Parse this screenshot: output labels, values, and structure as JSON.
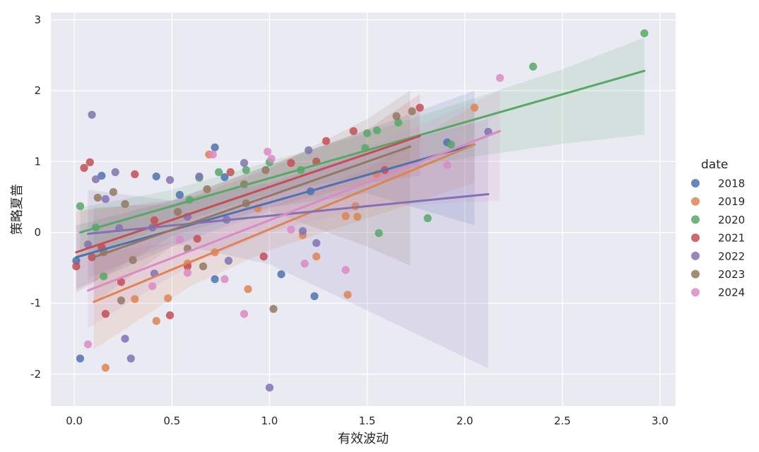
{
  "chart_data": {
    "type": "scatter",
    "subtype": "regression-with-confidence-bands",
    "xlabel": "有效波动",
    "ylabel": "策略夏普",
    "xlim": [
      -0.12,
      3.08
    ],
    "ylim": [
      -2.45,
      3.1
    ],
    "xticks": [
      0.0,
      0.5,
      1.0,
      1.5,
      2.0,
      2.5,
      3.0
    ],
    "xtick_labels": [
      "0.0",
      "0.5",
      "1.0",
      "1.5",
      "2.0",
      "2.5",
      "3.0"
    ],
    "yticks": [
      -2,
      -1,
      0,
      1,
      2,
      3
    ],
    "ytick_labels": [
      "-2",
      "-1",
      "0",
      "1",
      "2",
      "3"
    ],
    "grid": true,
    "background": "#eaeaf2",
    "legend": {
      "title": "date",
      "position": "right"
    },
    "series": [
      {
        "name": "2018",
        "color": "#4c72b0",
        "points": [
          [
            0.01,
            -0.4
          ],
          [
            0.03,
            -1.78
          ],
          [
            0.14,
            0.8
          ],
          [
            0.42,
            0.79
          ],
          [
            0.54,
            0.53
          ],
          [
            0.72,
            1.2
          ],
          [
            0.77,
            0.78
          ],
          [
            1.06,
            -0.59
          ],
          [
            1.21,
            0.58
          ],
          [
            1.23,
            -0.9
          ],
          [
            0.72,
            -0.66
          ],
          [
            1.91,
            1.27
          ]
        ],
        "fit": {
          "x": [
            0.01,
            2.05
          ],
          "y": [
            -0.35,
            1.24
          ]
        },
        "band": {
          "x": [
            0.01,
            0.5,
            1.0,
            1.5,
            2.05
          ],
          "lo": [
            -0.8,
            -0.2,
            0.35,
            0.55,
            0.1
          ],
          "hi": [
            0.1,
            0.45,
            0.95,
            1.45,
            2.0
          ]
        }
      },
      {
        "name": "2019",
        "color": "#dd8452",
        "points": [
          [
            0.16,
            -1.91
          ],
          [
            0.31,
            -0.94
          ],
          [
            0.42,
            -1.25
          ],
          [
            0.48,
            -0.93
          ],
          [
            0.58,
            -0.44
          ],
          [
            0.69,
            1.1
          ],
          [
            0.72,
            -0.28
          ],
          [
            0.89,
            -0.8
          ],
          [
            0.94,
            0.34
          ],
          [
            1.17,
            -0.04
          ],
          [
            1.24,
            -0.34
          ],
          [
            1.39,
            0.23
          ],
          [
            1.4,
            -0.88
          ],
          [
            1.45,
            0.22
          ],
          [
            1.44,
            0.37
          ],
          [
            1.55,
            0.82
          ],
          [
            2.05,
            1.76
          ]
        ],
        "fit": {
          "x": [
            0.1,
            2.05
          ],
          "y": [
            -0.98,
            1.24
          ]
        },
        "band": {
          "x": [
            0.1,
            0.6,
            1.0,
            1.5,
            2.05
          ],
          "lo": [
            -1.65,
            -0.75,
            -0.25,
            0.2,
            0.7
          ],
          "hi": [
            -0.3,
            -0.1,
            0.35,
            0.9,
            1.8
          ]
        }
      },
      {
        "name": "2020",
        "color": "#55a868",
        "points": [
          [
            0.03,
            0.37
          ],
          [
            0.11,
            0.07
          ],
          [
            0.15,
            -0.62
          ],
          [
            0.59,
            0.46
          ],
          [
            0.64,
            0.77
          ],
          [
            0.74,
            0.85
          ],
          [
            0.88,
            0.88
          ],
          [
            1.0,
            0.99
          ],
          [
            1.16,
            0.88
          ],
          [
            1.49,
            1.19
          ],
          [
            1.5,
            1.4
          ],
          [
            1.55,
            1.44
          ],
          [
            1.56,
            -0.01
          ],
          [
            1.66,
            1.55
          ],
          [
            1.81,
            0.2
          ],
          [
            1.93,
            1.24
          ],
          [
            2.35,
            2.34
          ],
          [
            2.92,
            2.81
          ]
        ],
        "fit": {
          "x": [
            0.03,
            2.92
          ],
          "y": [
            0.0,
            2.28
          ]
        },
        "band": {
          "x": [
            0.03,
            0.5,
            1.0,
            1.5,
            2.0,
            2.5,
            2.92
          ],
          "lo": [
            -0.35,
            0.1,
            0.55,
            0.8,
            1.05,
            1.25,
            1.38
          ],
          "hi": [
            0.35,
            0.6,
            1.0,
            1.4,
            1.85,
            2.3,
            2.75
          ]
        }
      },
      {
        "name": "2021",
        "color": "#c44e52",
        "points": [
          [
            0.01,
            -0.48
          ],
          [
            0.05,
            0.91
          ],
          [
            0.08,
            0.99
          ],
          [
            0.09,
            -0.35
          ],
          [
            0.14,
            -0.21
          ],
          [
            0.16,
            -1.15
          ],
          [
            0.24,
            -0.7
          ],
          [
            0.31,
            0.82
          ],
          [
            0.41,
            0.17
          ],
          [
            0.49,
            -1.17
          ],
          [
            0.58,
            -0.48
          ],
          [
            0.63,
            -0.09
          ],
          [
            0.8,
            0.85
          ],
          [
            0.97,
            -0.34
          ],
          [
            1.11,
            0.98
          ],
          [
            1.24,
            1.0
          ],
          [
            1.29,
            1.29
          ],
          [
            1.43,
            1.43
          ],
          [
            1.59,
            0.88
          ],
          [
            1.77,
            1.76
          ]
        ],
        "fit": {
          "x": [
            0.01,
            1.77
          ],
          "y": [
            -0.28,
            1.36
          ]
        },
        "band": {
          "x": [
            0.01,
            0.5,
            1.0,
            1.5,
            1.77
          ],
          "lo": [
            -0.85,
            -0.05,
            0.35,
            0.7,
            0.8
          ],
          "hi": [
            0.3,
            0.45,
            0.95,
            1.45,
            1.95
          ]
        }
      },
      {
        "name": "2022",
        "color": "#8172b3",
        "points": [
          [
            0.07,
            -0.17
          ],
          [
            0.09,
            1.66
          ],
          [
            0.11,
            0.75
          ],
          [
            0.16,
            0.47
          ],
          [
            0.21,
            0.85
          ],
          [
            0.23,
            0.06
          ],
          [
            0.26,
            -1.5
          ],
          [
            0.29,
            -1.78
          ],
          [
            0.4,
            0.07
          ],
          [
            0.41,
            -0.58
          ],
          [
            0.49,
            0.74
          ],
          [
            0.58,
            0.22
          ],
          [
            0.64,
            0.79
          ],
          [
            0.78,
            0.18
          ],
          [
            0.79,
            -0.4
          ],
          [
            0.87,
            0.98
          ],
          [
            1.0,
            -2.19
          ],
          [
            1.17,
            0.02
          ],
          [
            1.2,
            1.16
          ],
          [
            1.24,
            -0.15
          ],
          [
            2.12,
            1.42
          ]
        ],
        "fit": {
          "x": [
            0.07,
            2.12
          ],
          "y": [
            -0.02,
            0.54
          ]
        },
        "band": {
          "x": [
            0.07,
            0.5,
            1.0,
            1.5,
            2.12
          ],
          "lo": [
            -0.65,
            -0.15,
            -0.45,
            -1.1,
            -1.92
          ],
          "hi": [
            0.6,
            0.45,
            0.7,
            1.15,
            1.6
          ]
        }
      },
      {
        "name": "2023",
        "color": "#937860",
        "points": [
          [
            0.12,
            0.49
          ],
          [
            0.15,
            -0.28
          ],
          [
            0.2,
            0.57
          ],
          [
            0.24,
            -0.96
          ],
          [
            0.26,
            0.4
          ],
          [
            0.3,
            -0.39
          ],
          [
            0.53,
            0.29
          ],
          [
            0.58,
            -0.23
          ],
          [
            0.66,
            -0.48
          ],
          [
            0.68,
            0.61
          ],
          [
            0.87,
            0.68
          ],
          [
            0.88,
            0.41
          ],
          [
            0.98,
            0.88
          ],
          [
            1.02,
            -1.08
          ],
          [
            1.65,
            1.64
          ],
          [
            1.73,
            1.71
          ]
        ],
        "fit": {
          "x": [
            0.1,
            1.72
          ],
          "y": [
            -0.35,
            1.21
          ]
        },
        "band": {
          "x": [
            0.1,
            0.5,
            1.0,
            1.5,
            1.72
          ],
          "lo": [
            -1.0,
            -0.2,
            0.3,
            -0.2,
            -0.47
          ],
          "hi": [
            0.35,
            0.4,
            0.9,
            1.6,
            2.0
          ]
        }
      },
      {
        "name": "2024",
        "color": "#da8bc3",
        "points": [
          [
            0.07,
            -1.58
          ],
          [
            0.4,
            -0.76
          ],
          [
            0.54,
            -0.1
          ],
          [
            0.58,
            -0.57
          ],
          [
            0.71,
            1.1
          ],
          [
            0.77,
            -0.66
          ],
          [
            0.87,
            -1.15
          ],
          [
            0.99,
            1.14
          ],
          [
            1.01,
            1.04
          ],
          [
            1.11,
            0.04
          ],
          [
            1.18,
            -0.44
          ],
          [
            1.39,
            -0.53
          ],
          [
            1.91,
            0.95
          ],
          [
            2.18,
            2.18
          ]
        ],
        "fit": {
          "x": [
            0.07,
            2.18
          ],
          "y": [
            -0.82,
            1.43
          ]
        },
        "band": {
          "x": [
            0.07,
            0.6,
            1.0,
            1.5,
            2.18
          ],
          "lo": [
            -1.35,
            -0.45,
            0.0,
            0.35,
            0.45
          ],
          "hi": [
            -0.25,
            0.05,
            0.6,
            1.2,
            2.0
          ]
        }
      }
    ]
  }
}
